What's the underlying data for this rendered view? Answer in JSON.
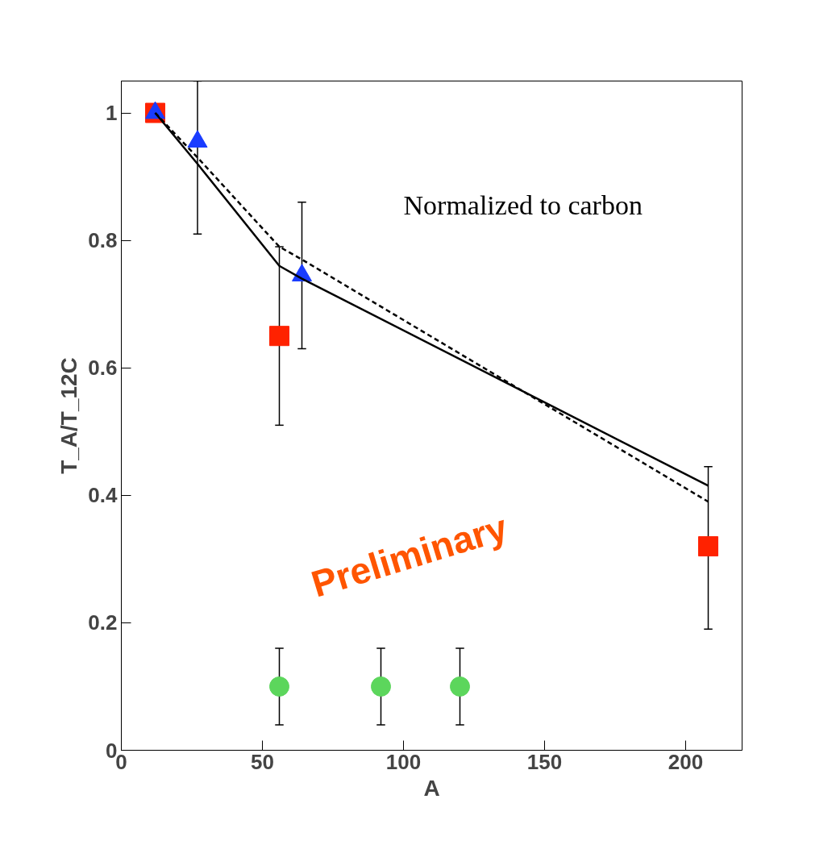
{
  "chart_data": {
    "type": "scatter",
    "xlabel": "A",
    "ylabel": "T_A/T_12C",
    "xlim": [
      0,
      220
    ],
    "xticks": [
      0,
      50,
      100,
      150,
      200
    ],
    "ylim": [
      0,
      1.05
    ],
    "yticks": [
      0,
      0.2,
      0.4,
      0.6,
      0.8,
      1
    ],
    "grid": false,
    "annotations": [
      "Normalized to carbon",
      "Preliminary"
    ],
    "series": [
      {
        "type": "line",
        "line_style": "solid",
        "color": "#000000",
        "x": [
          12,
          27,
          56,
          64,
          208
        ],
        "values": [
          1.0,
          0.92,
          0.76,
          0.74,
          0.415
        ]
      },
      {
        "type": "line",
        "line_style": "dashed",
        "color": "#000000",
        "x": [
          12,
          27,
          56,
          64,
          208
        ],
        "values": [
          1.0,
          0.93,
          0.79,
          0.77,
          0.39
        ]
      },
      {
        "marker": "square",
        "color": "#ff2200",
        "x": [
          12,
          56,
          208
        ],
        "values": [
          1.0,
          0.65,
          0.32
        ],
        "errors": [
          null,
          [
            0.51,
            0.79
          ],
          [
            0.19,
            0.445
          ]
        ]
      },
      {
        "marker": "triangle",
        "color": "#1a3cff",
        "x": [
          12,
          27,
          64
        ],
        "values": [
          1.0,
          0.955,
          0.745
        ],
        "errors": [
          null,
          [
            0.81,
            1.05
          ],
          [
            0.63,
            0.86
          ]
        ]
      },
      {
        "marker": "circle",
        "color": "#5cd65c",
        "x": [
          56,
          92,
          120
        ],
        "values": [
          0.1,
          0.1,
          0.1
        ],
        "errors": [
          [
            0.04,
            0.16
          ],
          [
            0.04,
            0.16
          ],
          [
            0.04,
            0.16
          ]
        ]
      }
    ]
  }
}
